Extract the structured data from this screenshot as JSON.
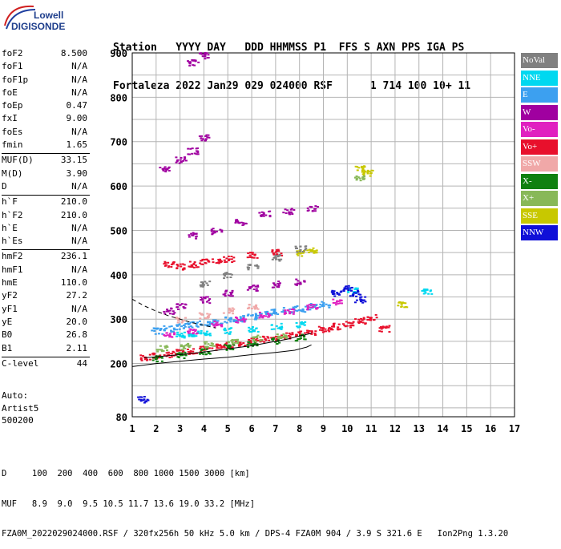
{
  "logo": {
    "line1": "Lowell",
    "line2": "DIGISONDE"
  },
  "header": {
    "line1": "Station   YYYY DAY   DDD HHMMSS P1  FFS S AXN PPS IGA PS",
    "line2": "Fortaleza 2022 Jan29 029 024000 RSF      1 714 100 10+ 11"
  },
  "params": {
    "group1": [
      {
        "name": "foF2",
        "value": "8.500"
      },
      {
        "name": "foF1",
        "value": "N/A"
      },
      {
        "name": "foF1p",
        "value": "N/A"
      },
      {
        "name": "foE",
        "value": "N/A"
      },
      {
        "name": "foEp",
        "value": "0.47"
      },
      {
        "name": "fxI",
        "value": "9.00"
      },
      {
        "name": "foEs",
        "value": "N/A"
      },
      {
        "name": "fmin",
        "value": "1.65"
      }
    ],
    "group2": [
      {
        "name": "MUF(D)",
        "value": "33.15"
      },
      {
        "name": "M(D)",
        "value": "3.90"
      },
      {
        "name": "D",
        "value": "N/A"
      }
    ],
    "group3": [
      {
        "name": "h`F",
        "value": "210.0"
      },
      {
        "name": "h`F2",
        "value": "210.0"
      },
      {
        "name": "h`E",
        "value": "N/A"
      },
      {
        "name": "h`Es",
        "value": "N/A"
      }
    ],
    "group4": [
      {
        "name": "hmF2",
        "value": "236.1"
      },
      {
        "name": "hmF1",
        "value": "N/A"
      },
      {
        "name": "hmE",
        "value": "110.0"
      },
      {
        "name": "yF2",
        "value": "27.2"
      },
      {
        "name": "yF1",
        "value": "N/A"
      },
      {
        "name": "yE",
        "value": "20.0"
      },
      {
        "name": "B0",
        "value": "26.8"
      },
      {
        "name": "B1",
        "value": "2.11"
      }
    ],
    "group5": [
      {
        "name": "C-level",
        "value": "44"
      }
    ]
  },
  "auto": {
    "line1": "Auto:",
    "line2": "Artist5",
    "line3": "500200"
  },
  "legend": [
    {
      "label": "NoVal",
      "color": "#808080"
    },
    {
      "label": "NNE",
      "color": "#00d8f0"
    },
    {
      "label": "E",
      "color": "#3ca0f0"
    },
    {
      "label": "W",
      "color": "#a000a0"
    },
    {
      "label": "Vo-",
      "color": "#e020c0"
    },
    {
      "label": "Vo+",
      "color": "#e8102c"
    },
    {
      "label": "SSW",
      "color": "#f0a8a8"
    },
    {
      "label": "X-",
      "color": "#108010"
    },
    {
      "label": "X+",
      "color": "#88b858"
    },
    {
      "label": "SSE",
      "color": "#c8c800"
    },
    {
      "label": "NNW",
      "color": "#1010d8"
    }
  ],
  "footer": {
    "line1": "D     100  200  400  600  800 1000 1500 3000 [km]",
    "line2": "MUF   8.9  9.0  9.5 10.5 11.7 13.6 19.0 33.2 [MHz]",
    "line3": "FZA0M_2022029024000.RSF / 320fx256h 50 kHz 5.0 km / DPS-4 FZA0M 904 / 3.9 S 321.6 E   Ion2Png 1.3.20"
  },
  "chart_data": {
    "type": "scatter",
    "x_ticks": [
      "1",
      "2",
      "3",
      "4",
      "5",
      "6",
      "7",
      "8",
      "9",
      "10",
      "11",
      "12",
      "13",
      "14",
      "15",
      "16",
      "17"
    ],
    "y_ticks": [
      "80",
      "200",
      "300",
      "400",
      "500",
      "600",
      "700",
      "800",
      "900"
    ],
    "xlim": [
      1,
      17
    ],
    "ylim": [
      80,
      900
    ],
    "grid": true,
    "series": [
      {
        "name": "Vo+",
        "points": [
          [
            1.5,
            215
          ],
          [
            2.0,
            218
          ],
          [
            2.5,
            222
          ],
          [
            3.0,
            226
          ],
          [
            3.5,
            230
          ],
          [
            4.0,
            234
          ],
          [
            4.5,
            238
          ],
          [
            5.0,
            243
          ],
          [
            5.5,
            248
          ],
          [
            6.0,
            252
          ],
          [
            6.5,
            256
          ],
          [
            7.0,
            260
          ],
          [
            7.5,
            264
          ],
          [
            8.0,
            268
          ],
          [
            8.5,
            272
          ],
          [
            9.0,
            278
          ],
          [
            9.5,
            285
          ],
          [
            10.0,
            290
          ],
          [
            10.5,
            298
          ],
          [
            11.0,
            305
          ],
          [
            11.5,
            280
          ],
          [
            3.0,
            420
          ],
          [
            3.5,
            425
          ],
          [
            4.0,
            430
          ],
          [
            4.5,
            433
          ],
          [
            5.0,
            437
          ],
          [
            6.0,
            445
          ],
          [
            7.0,
            452
          ],
          [
            2.5,
            425
          ]
        ]
      },
      {
        "name": "E",
        "points": [
          [
            2.0,
            275
          ],
          [
            2.5,
            280
          ],
          [
            3.0,
            285
          ],
          [
            3.5,
            290
          ],
          [
            4.0,
            292
          ],
          [
            4.5,
            295
          ],
          [
            5.0,
            300
          ],
          [
            5.5,
            303
          ],
          [
            6.0,
            308
          ],
          [
            6.5,
            312
          ],
          [
            7.0,
            318
          ],
          [
            7.5,
            322
          ],
          [
            8.0,
            325
          ],
          [
            8.5,
            330
          ],
          [
            9.0,
            335
          ]
        ]
      },
      {
        "name": "NNE",
        "points": [
          [
            3.0,
            265
          ],
          [
            3.5,
            268
          ],
          [
            4.0,
            270
          ],
          [
            5.0,
            275
          ],
          [
            6.0,
            280
          ],
          [
            7.0,
            285
          ],
          [
            8.0,
            290
          ],
          [
            10.2,
            365
          ],
          [
            13.3,
            365
          ]
        ]
      },
      {
        "name": "W",
        "points": [
          [
            2.5,
            320
          ],
          [
            3.0,
            330
          ],
          [
            4.0,
            345
          ],
          [
            5.0,
            360
          ],
          [
            6.0,
            372
          ],
          [
            7.0,
            380
          ],
          [
            8.0,
            385
          ],
          [
            3.5,
            490
          ],
          [
            4.5,
            500
          ],
          [
            5.5,
            520
          ],
          [
            6.5,
            540
          ],
          [
            7.5,
            545
          ],
          [
            8.5,
            550
          ],
          [
            2.3,
            640
          ],
          [
            3.0,
            660
          ],
          [
            3.5,
            680
          ],
          [
            4.0,
            710
          ],
          [
            3.5,
            880
          ],
          [
            4.0,
            895
          ]
        ]
      },
      {
        "name": "NNW",
        "points": [
          [
            1.4,
            120
          ],
          [
            9.5,
            360
          ],
          [
            10.0,
            370
          ],
          [
            10.5,
            345
          ],
          [
            10.3,
            360
          ]
        ]
      },
      {
        "name": "X-",
        "points": [
          [
            2.0,
            212
          ],
          [
            3.0,
            220
          ],
          [
            4.0,
            228
          ],
          [
            5.0,
            238
          ],
          [
            6.0,
            245
          ],
          [
            7.0,
            252
          ],
          [
            8.0,
            260
          ]
        ]
      },
      {
        "name": "X+",
        "points": [
          [
            2.2,
            235
          ],
          [
            3.2,
            240
          ],
          [
            4.2,
            245
          ],
          [
            5.2,
            250
          ],
          [
            6.2,
            258
          ],
          [
            7.2,
            265
          ],
          [
            10.5,
            620
          ]
        ]
      },
      {
        "name": "SSE",
        "points": [
          [
            8.0,
            450
          ],
          [
            8.5,
            455
          ],
          [
            10.5,
            640
          ],
          [
            10.8,
            630
          ],
          [
            12.3,
            335
          ]
        ]
      },
      {
        "name": "Vo-",
        "points": [
          [
            2.5,
            265
          ],
          [
            3.5,
            275
          ],
          [
            4.5,
            290
          ],
          [
            5.5,
            300
          ],
          [
            6.5,
            310
          ],
          [
            7.5,
            320
          ],
          [
            8.5,
            330
          ],
          [
            9.5,
            340
          ]
        ]
      },
      {
        "name": "SSW",
        "points": [
          [
            3.0,
            300
          ],
          [
            4.0,
            310
          ],
          [
            5.0,
            320
          ],
          [
            6.0,
            330
          ]
        ]
      },
      {
        "name": "NoVal",
        "points": [
          [
            4.0,
            380
          ],
          [
            5.0,
            400
          ],
          [
            6.0,
            420
          ],
          [
            7.0,
            440
          ],
          [
            8.0,
            460
          ]
        ]
      }
    ],
    "traces": [
      {
        "name": "O-trace",
        "points": [
          [
            1.5,
            213
          ],
          [
            2.0,
            215
          ],
          [
            3.0,
            220
          ],
          [
            4.0,
            226
          ],
          [
            5.0,
            233
          ],
          [
            6.0,
            240
          ],
          [
            7.0,
            250
          ],
          [
            7.5,
            255
          ],
          [
            8.0,
            262
          ],
          [
            8.5,
            268
          ]
        ]
      },
      {
        "name": "profile",
        "points": [
          [
            1.0,
            193
          ],
          [
            2.0,
            200
          ],
          [
            3.0,
            205
          ],
          [
            4.0,
            210
          ],
          [
            5.0,
            214
          ],
          [
            6.0,
            220
          ],
          [
            7.0,
            225
          ],
          [
            7.8,
            230
          ],
          [
            8.3,
            237
          ],
          [
            8.5,
            242
          ]
        ]
      },
      {
        "name": "dashed",
        "points": [
          [
            1.0,
            345
          ],
          [
            1.5,
            330
          ],
          [
            2.0,
            318
          ],
          [
            2.5,
            308
          ],
          [
            3.0,
            300
          ],
          [
            3.5,
            292
          ],
          [
            4.0,
            286
          ],
          [
            4.5,
            280
          ]
        ]
      }
    ]
  }
}
